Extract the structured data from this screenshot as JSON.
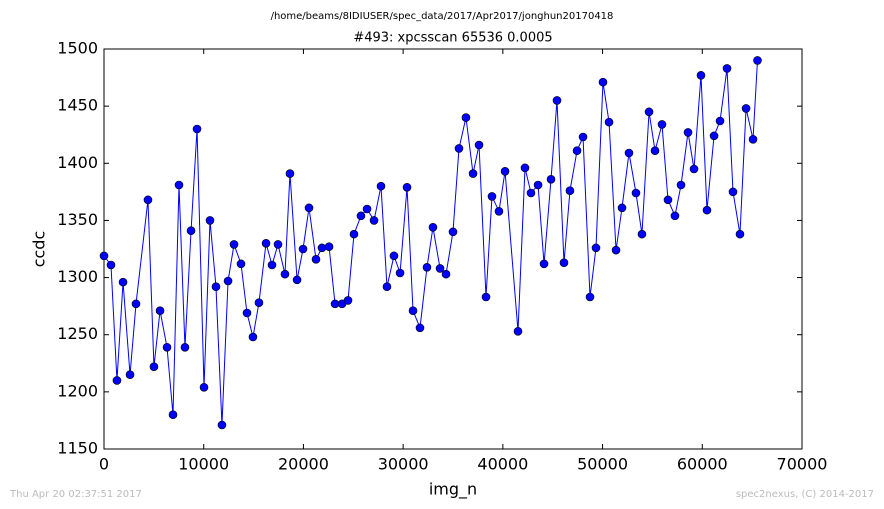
{
  "chart_data": {
    "type": "line",
    "subtitle": "/home/beams/8IDIUSER/spec_data/2017/Apr2017/jonghun20170418",
    "title": "#493: xpcsscan 65536 0.0005",
    "x_label": "img_n",
    "y_label": "ccdc",
    "footer_left": "Thu Apr 20 02:37:51 2017",
    "footer_right": "spec2nexus, (C) 2014-2017",
    "color": "#0000ff",
    "marker": "circle",
    "grid": false,
    "xlim": [
      0,
      70000
    ],
    "xticks": [
      0,
      10000,
      20000,
      30000,
      40000,
      50000,
      60000,
      70000
    ],
    "ylim": [
      1150,
      1500
    ],
    "yticks": [
      1150,
      1200,
      1250,
      1300,
      1350,
      1400,
      1450,
      1500
    ],
    "x": [
      0,
      700,
      1300,
      1910,
      2610,
      3210,
      4410,
      5010,
      5620,
      6320,
      6920,
      7520,
      8120,
      8730,
      9330,
      10030,
      10630,
      11230,
      11830,
      12440,
      13040,
      13740,
      14340,
      14940,
      15540,
      16250,
      16850,
      17450,
      18150,
      18650,
      19360,
      19960,
      20560,
      21260,
      21860,
      22570,
      23170,
      23870,
      24470,
      25070,
      25770,
      26380,
      27080,
      27780,
      28380,
      29080,
      29690,
      30390,
      30990,
      31690,
      32390,
      32990,
      33700,
      34300,
      35000,
      35600,
      36300,
      37010,
      37610,
      38310,
      38910,
      39610,
      40220,
      41520,
      42220,
      42820,
      43530,
      44130,
      44830,
      45430,
      46130,
      46730,
      47440,
      48040,
      48740,
      49340,
      50040,
      50650,
      51350,
      51950,
      52650,
      53350,
      53950,
      54660,
      55260,
      55960,
      56560,
      57260,
      57870,
      58570,
      59170,
      59870,
      60470,
      61180,
      61780,
      62480,
      63080,
      63780,
      64390,
      65090,
      65536
    ],
    "values": [
      1319,
      1311,
      1210,
      1296,
      1215,
      1277,
      1368,
      1222,
      1271,
      1239,
      1180,
      1381,
      1239,
      1341,
      1430,
      1204,
      1350,
      1292,
      1171,
      1297,
      1329,
      1312,
      1269,
      1248,
      1278,
      1330,
      1311,
      1329,
      1303,
      1391,
      1298,
      1325,
      1361,
      1316,
      1326,
      1327,
      1277,
      1277,
      1280,
      1338,
      1354,
      1360,
      1350,
      1380,
      1292,
      1319,
      1304,
      1379,
      1271,
      1256,
      1309,
      1344,
      1308,
      1303,
      1340,
      1413,
      1440,
      1391,
      1416,
      1283,
      1371,
      1358,
      1393,
      1253,
      1396,
      1374,
      1381,
      1312,
      1386,
      1455,
      1313,
      1376,
      1411,
      1423,
      1283,
      1326,
      1471,
      1436,
      1324,
      1361,
      1409,
      1374,
      1338,
      1445,
      1411,
      1434,
      1368,
      1354,
      1381,
      1427,
      1395,
      1477,
      1359,
      1424,
      1437,
      1483,
      1375,
      1338,
      1448,
      1421,
      1490
    ]
  }
}
